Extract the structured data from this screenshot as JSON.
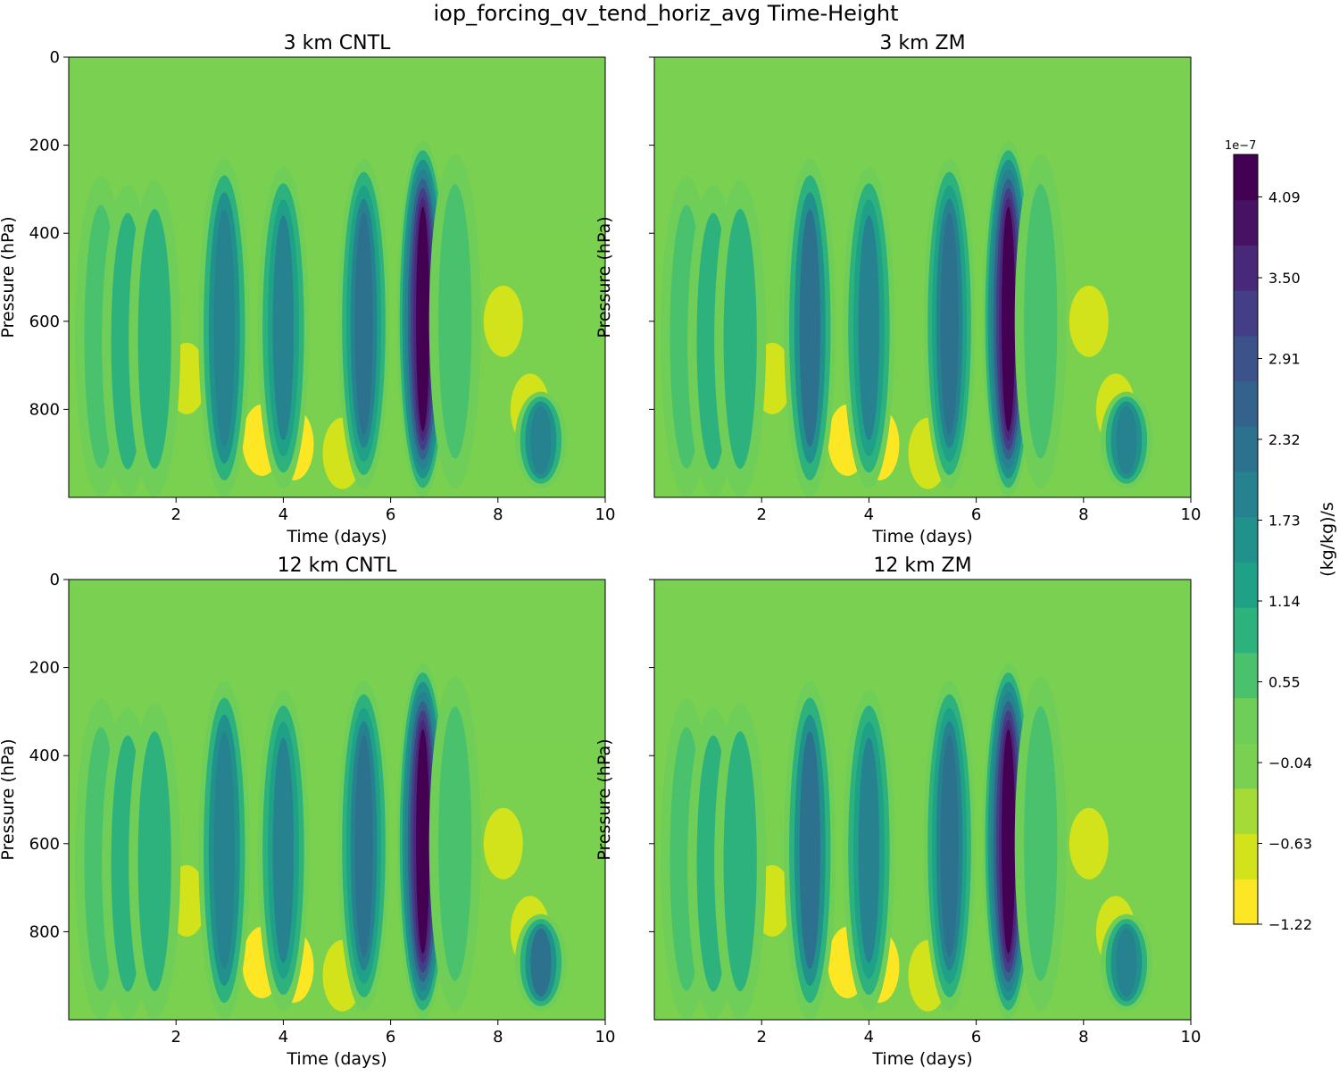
{
  "figure": {
    "title": "iop_forcing_qv_tend_horiz_avg Time-Height"
  },
  "chart_data": [
    {
      "type": "heatmap",
      "title": "3 km CNTL",
      "xlabel": "Time (days)",
      "ylabel": "Pressure (hPa)",
      "xlim": [
        0,
        10
      ],
      "ylim": [
        1000,
        0
      ],
      "xticks": [
        "2",
        "4",
        "6",
        "8",
        "10"
      ],
      "yticks": [
        "0",
        "200",
        "400",
        "600",
        "800"
      ],
      "background_value": 0.0,
      "columns": [
        {
          "time": 0.6,
          "top": 270,
          "bottom": 1000,
          "value": 0.6
        },
        {
          "time": 1.1,
          "top": 290,
          "bottom": 1000,
          "value": 0.8
        },
        {
          "time": 1.6,
          "top": 280,
          "bottom": 1000,
          "value": 1.0
        },
        {
          "time": 2.9,
          "top": 230,
          "bottom": 1000,
          "value": 2.0
        },
        {
          "time": 4.0,
          "top": 250,
          "bottom": 980,
          "value": 1.8
        },
        {
          "time": 5.5,
          "top": 230,
          "bottom": 980,
          "value": 2.4
        },
        {
          "time": 6.6,
          "top": 190,
          "bottom": 1000,
          "value": 4.3
        },
        {
          "time": 7.2,
          "top": 220,
          "bottom": 980,
          "value": 0.6
        },
        {
          "time": 8.8,
          "top": 760,
          "bottom": 980,
          "value": 2.0
        }
      ],
      "dry_regions": [
        {
          "time": 2.2,
          "pressure": 730,
          "value": -0.7
        },
        {
          "time": 3.6,
          "pressure": 870,
          "value": -0.9
        },
        {
          "time": 4.2,
          "pressure": 880,
          "value": -1.0
        },
        {
          "time": 5.1,
          "pressure": 900,
          "value": -0.8
        },
        {
          "time": 8.1,
          "pressure": 600,
          "value": -0.8
        },
        {
          "time": 8.6,
          "pressure": 800,
          "value": -0.7
        }
      ]
    },
    {
      "type": "heatmap",
      "title": "3 km ZM",
      "xlabel": "Time (days)",
      "ylabel": "Pressure (hPa)",
      "xlim": [
        0,
        10
      ],
      "ylim": [
        1000,
        0
      ],
      "xticks": [
        "2",
        "4",
        "6",
        "8",
        "10"
      ],
      "yticks": [
        "0",
        "200",
        "400",
        "600",
        "800"
      ],
      "background_value": 0.0,
      "columns": [
        {
          "time": 0.6,
          "top": 270,
          "bottom": 1000,
          "value": 0.6
        },
        {
          "time": 1.1,
          "top": 290,
          "bottom": 1000,
          "value": 0.8
        },
        {
          "time": 1.6,
          "top": 280,
          "bottom": 1000,
          "value": 1.0
        },
        {
          "time": 2.9,
          "top": 230,
          "bottom": 1000,
          "value": 2.1
        },
        {
          "time": 4.0,
          "top": 250,
          "bottom": 980,
          "value": 1.9
        },
        {
          "time": 5.5,
          "top": 230,
          "bottom": 980,
          "value": 2.4
        },
        {
          "time": 6.6,
          "top": 190,
          "bottom": 1000,
          "value": 4.3
        },
        {
          "time": 7.2,
          "top": 220,
          "bottom": 980,
          "value": 0.6
        },
        {
          "time": 8.8,
          "top": 760,
          "bottom": 980,
          "value": 2.0
        }
      ],
      "dry_regions": [
        {
          "time": 2.2,
          "pressure": 730,
          "value": -0.7
        },
        {
          "time": 3.6,
          "pressure": 870,
          "value": -0.9
        },
        {
          "time": 4.2,
          "pressure": 880,
          "value": -1.0
        },
        {
          "time": 5.1,
          "pressure": 900,
          "value": -0.8
        },
        {
          "time": 8.1,
          "pressure": 600,
          "value": -0.8
        },
        {
          "time": 8.6,
          "pressure": 800,
          "value": -0.7
        }
      ]
    },
    {
      "type": "heatmap",
      "title": "12 km CNTL",
      "xlabel": "Time (days)",
      "ylabel": "Pressure (hPa)",
      "xlim": [
        0,
        10
      ],
      "ylim": [
        1000,
        0
      ],
      "xticks": [
        "2",
        "4",
        "6",
        "8",
        "10"
      ],
      "yticks": [
        "0",
        "200",
        "400",
        "600",
        "800"
      ],
      "background_value": 0.0,
      "columns": [
        {
          "time": 0.6,
          "top": 270,
          "bottom": 1000,
          "value": 0.6
        },
        {
          "time": 1.1,
          "top": 290,
          "bottom": 1000,
          "value": 0.8
        },
        {
          "time": 1.6,
          "top": 280,
          "bottom": 1000,
          "value": 1.0
        },
        {
          "time": 2.9,
          "top": 230,
          "bottom": 1000,
          "value": 2.0
        },
        {
          "time": 4.0,
          "top": 250,
          "bottom": 980,
          "value": 1.8
        },
        {
          "time": 5.5,
          "top": 230,
          "bottom": 980,
          "value": 2.4
        },
        {
          "time": 6.6,
          "top": 190,
          "bottom": 1000,
          "value": 4.3
        },
        {
          "time": 7.2,
          "top": 220,
          "bottom": 980,
          "value": 0.6
        },
        {
          "time": 8.8,
          "top": 760,
          "bottom": 980,
          "value": 2.1
        }
      ],
      "dry_regions": [
        {
          "time": 2.2,
          "pressure": 730,
          "value": -0.7
        },
        {
          "time": 3.6,
          "pressure": 870,
          "value": -0.9
        },
        {
          "time": 4.2,
          "pressure": 880,
          "value": -1.0
        },
        {
          "time": 5.1,
          "pressure": 900,
          "value": -0.8
        },
        {
          "time": 8.1,
          "pressure": 600,
          "value": -0.8
        },
        {
          "time": 8.6,
          "pressure": 800,
          "value": -0.7
        }
      ]
    },
    {
      "type": "heatmap",
      "title": "12 km ZM",
      "xlabel": "Time (days)",
      "ylabel": "Pressure (hPa)",
      "xlim": [
        0,
        10
      ],
      "ylim": [
        1000,
        0
      ],
      "xticks": [
        "2",
        "4",
        "6",
        "8",
        "10"
      ],
      "yticks": [
        "0",
        "200",
        "400",
        "600",
        "800"
      ],
      "background_value": 0.0,
      "columns": [
        {
          "time": 0.6,
          "top": 270,
          "bottom": 1000,
          "value": 0.6
        },
        {
          "time": 1.1,
          "top": 290,
          "bottom": 1000,
          "value": 0.8
        },
        {
          "time": 1.6,
          "top": 280,
          "bottom": 1000,
          "value": 1.0
        },
        {
          "time": 2.9,
          "top": 230,
          "bottom": 1000,
          "value": 2.1
        },
        {
          "time": 4.0,
          "top": 250,
          "bottom": 980,
          "value": 1.9
        },
        {
          "time": 5.5,
          "top": 230,
          "bottom": 980,
          "value": 2.4
        },
        {
          "time": 6.6,
          "top": 190,
          "bottom": 1000,
          "value": 4.3
        },
        {
          "time": 7.2,
          "top": 220,
          "bottom": 980,
          "value": 0.6
        },
        {
          "time": 8.8,
          "top": 760,
          "bottom": 980,
          "value": 2.0
        }
      ],
      "dry_regions": [
        {
          "time": 2.2,
          "pressure": 730,
          "value": -0.7
        },
        {
          "time": 3.6,
          "pressure": 870,
          "value": -0.9
        },
        {
          "time": 4.2,
          "pressure": 880,
          "value": -1.0
        },
        {
          "time": 5.1,
          "pressure": 900,
          "value": -0.8
        },
        {
          "time": 8.1,
          "pressure": 600,
          "value": -0.8
        },
        {
          "time": 8.6,
          "pressure": 800,
          "value": -0.7
        }
      ]
    }
  ],
  "colorbar": {
    "label": "(kg/kg)/s",
    "exponent": "1e−7",
    "min": -1.22,
    "max": 4.4,
    "tick_values": [
      -1.22,
      -0.63,
      -0.04,
      0.55,
      1.14,
      1.73,
      2.32,
      2.91,
      3.5,
      4.09
    ],
    "tick_labels": [
      "−1.22",
      "−0.63",
      "−0.04",
      "0.55",
      "1.14",
      "1.73",
      "2.32",
      "2.91",
      "3.50",
      "4.09"
    ],
    "levels": [
      "#fde725",
      "#d2e21b",
      "#a5db36",
      "#7ad151",
      "#6ece58",
      "#4ac16d",
      "#2db27d",
      "#1fa187",
      "#21918c",
      "#26828e",
      "#2c728e",
      "#33638d",
      "#3b528b",
      "#433e85",
      "#482878",
      "#471164",
      "#440154"
    ]
  }
}
